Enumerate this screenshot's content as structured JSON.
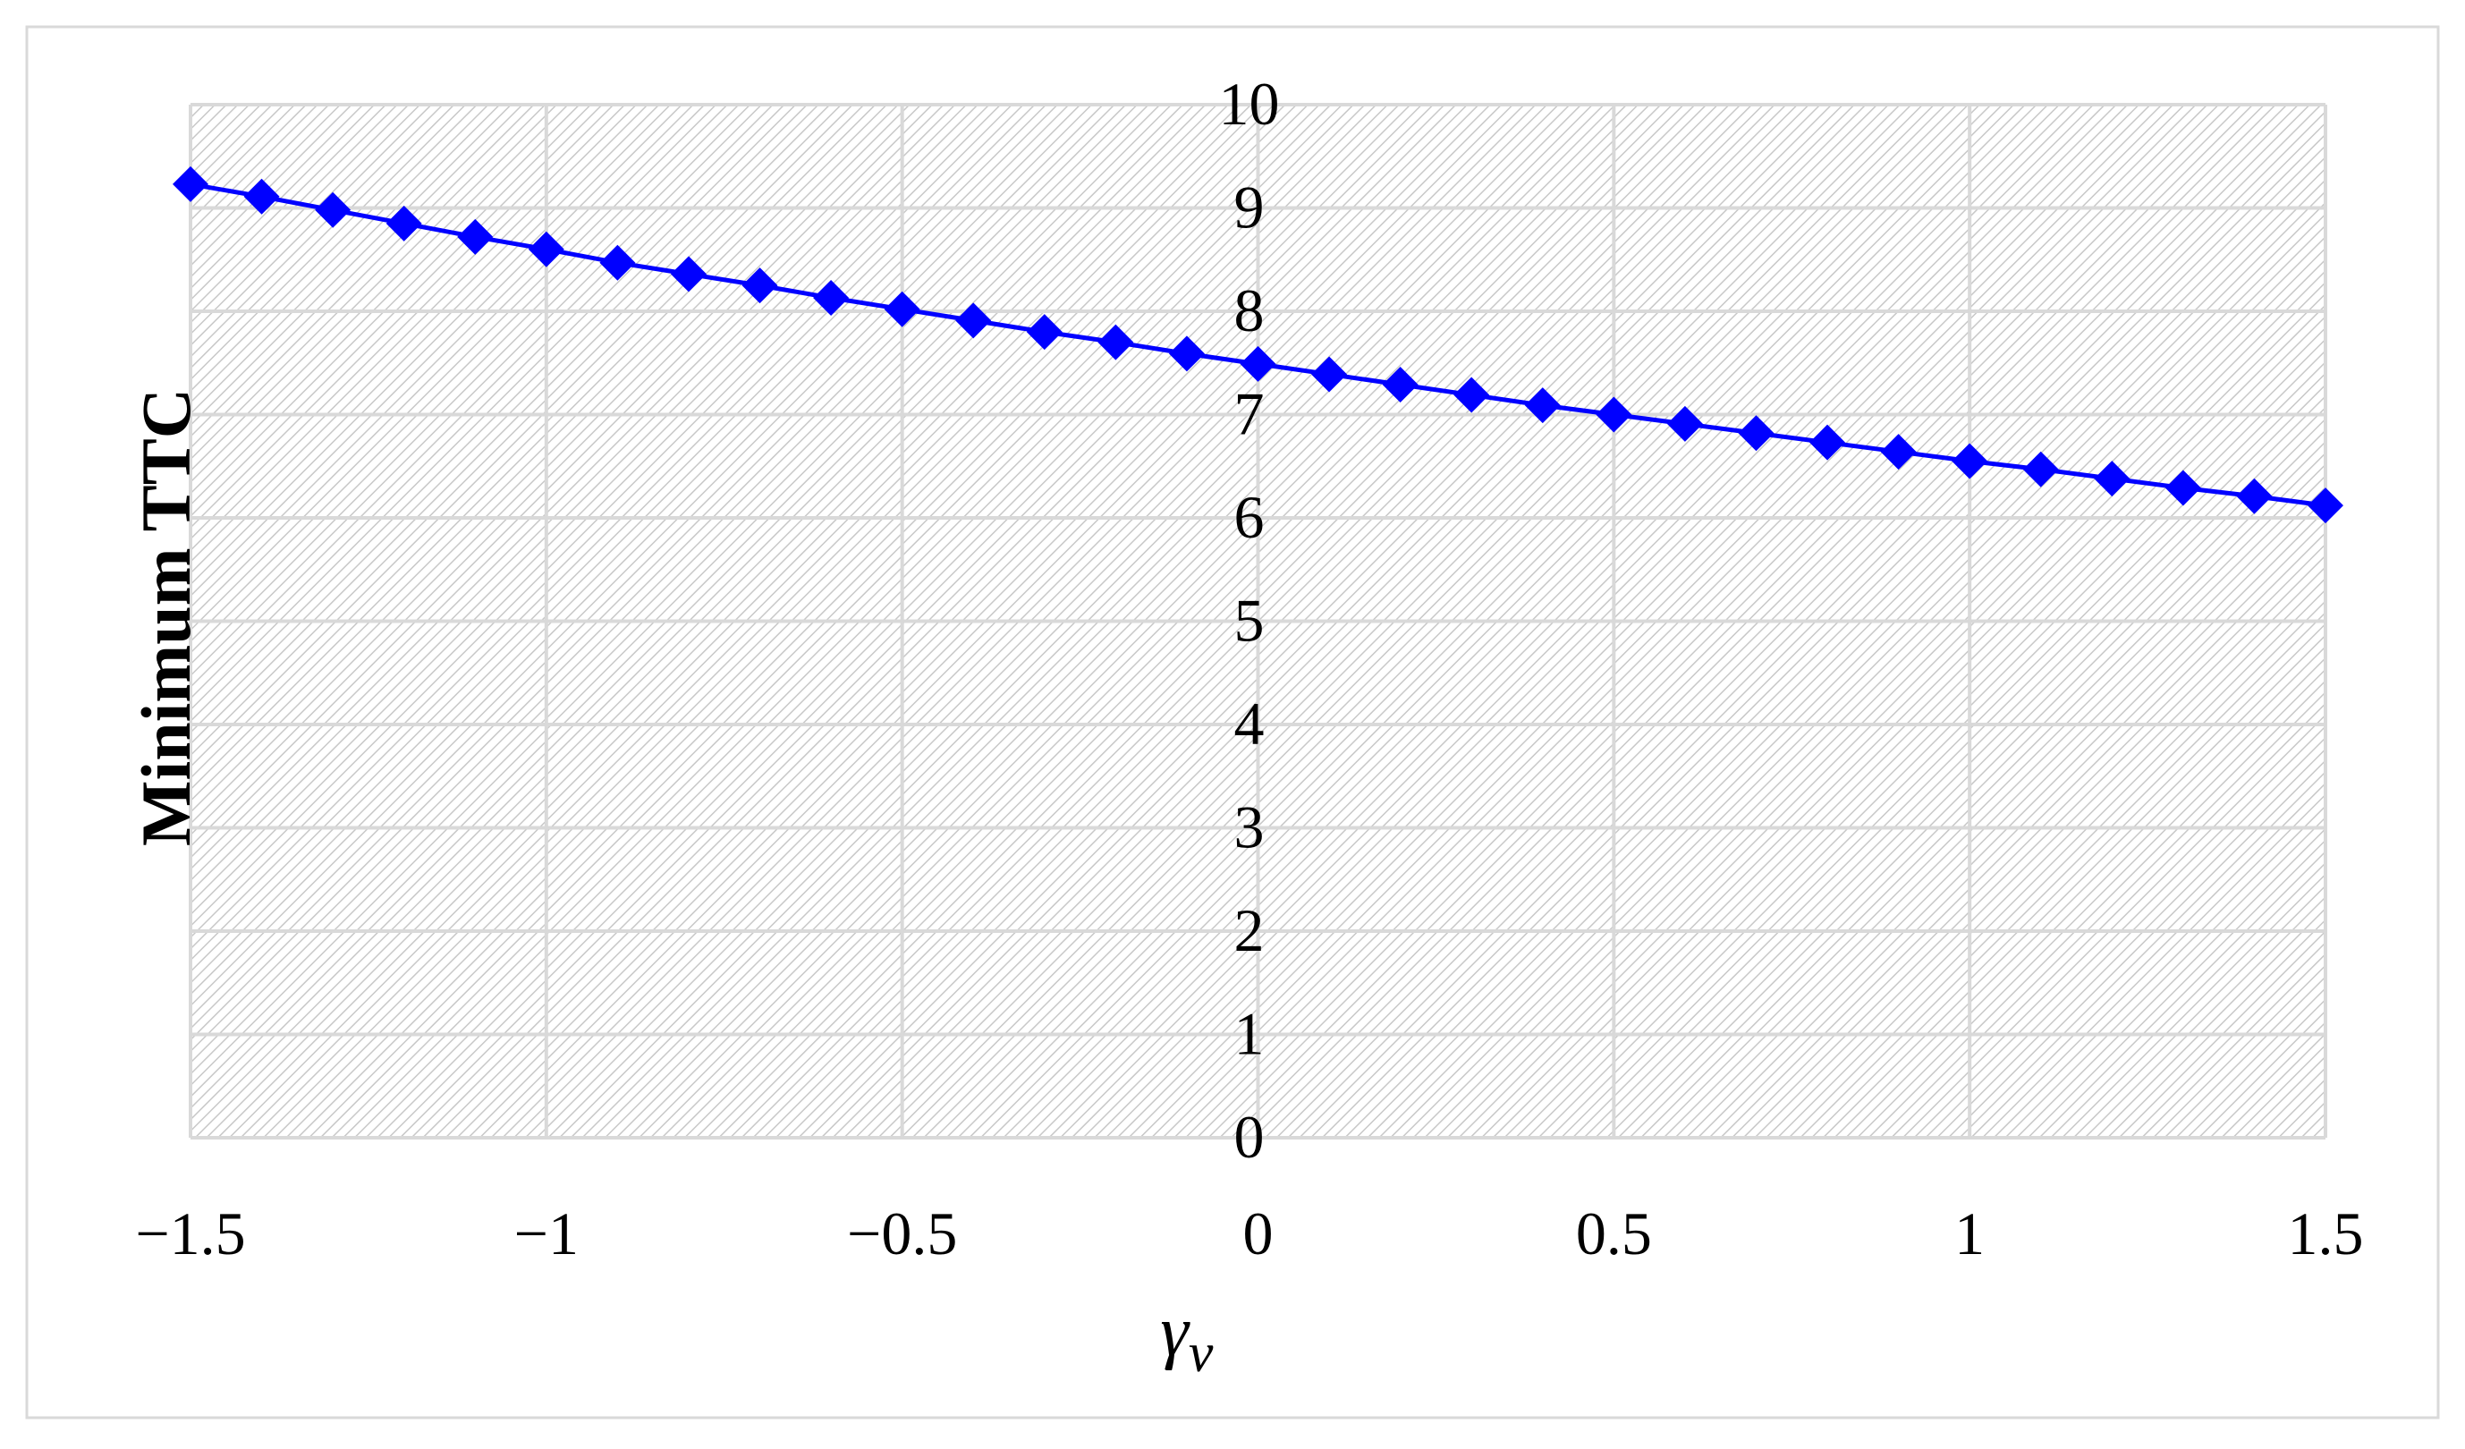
{
  "chart_data": {
    "type": "line",
    "title": "",
    "xlabel": "γ",
    "xlabel_subscript": "v",
    "ylabel": "Minimum TTC",
    "xlim": [
      -1.5,
      1.5
    ],
    "ylim": [
      0,
      10
    ],
    "x_ticks": [
      -1.5,
      -1,
      -0.5,
      0,
      0.5,
      1,
      1.5
    ],
    "x_tick_labels": [
      "−1.5",
      "−1",
      "−0.5",
      "0",
      "0.5",
      "1",
      "1.5"
    ],
    "y_ticks": [
      0,
      1,
      2,
      3,
      4,
      5,
      6,
      7,
      8,
      9,
      10
    ],
    "y_tick_labels": [
      "0",
      "1",
      "2",
      "3",
      "4",
      "5",
      "6",
      "7",
      "8",
      "9",
      "10"
    ],
    "grid": true,
    "marker": "diamond",
    "colors": {
      "series": "#0000ff",
      "grid": "#d9d9d9",
      "hatch": "#c8c8c8",
      "frame": "#d9d9d9"
    },
    "x": [
      -1.5,
      -1.4,
      -1.3,
      -1.2,
      -1.1,
      -1.0,
      -0.9,
      -0.8,
      -0.7,
      -0.6,
      -0.5,
      -0.4,
      -0.3,
      -0.2,
      -0.1,
      0.0,
      0.1,
      0.2,
      0.3,
      0.4,
      0.5,
      0.6,
      0.7,
      0.8,
      0.9,
      1.0,
      1.1,
      1.2,
      1.3,
      1.4,
      1.5
    ],
    "series": [
      {
        "values": [
          9.23,
          9.11,
          8.98,
          8.85,
          8.72,
          8.6,
          8.47,
          8.36,
          8.25,
          8.13,
          8.02,
          7.91,
          7.8,
          7.7,
          7.59,
          7.49,
          7.39,
          7.29,
          7.19,
          7.09,
          7.0,
          6.91,
          6.82,
          6.73,
          6.64,
          6.55,
          6.47,
          6.38,
          6.29,
          6.21,
          6.12
        ]
      }
    ]
  }
}
